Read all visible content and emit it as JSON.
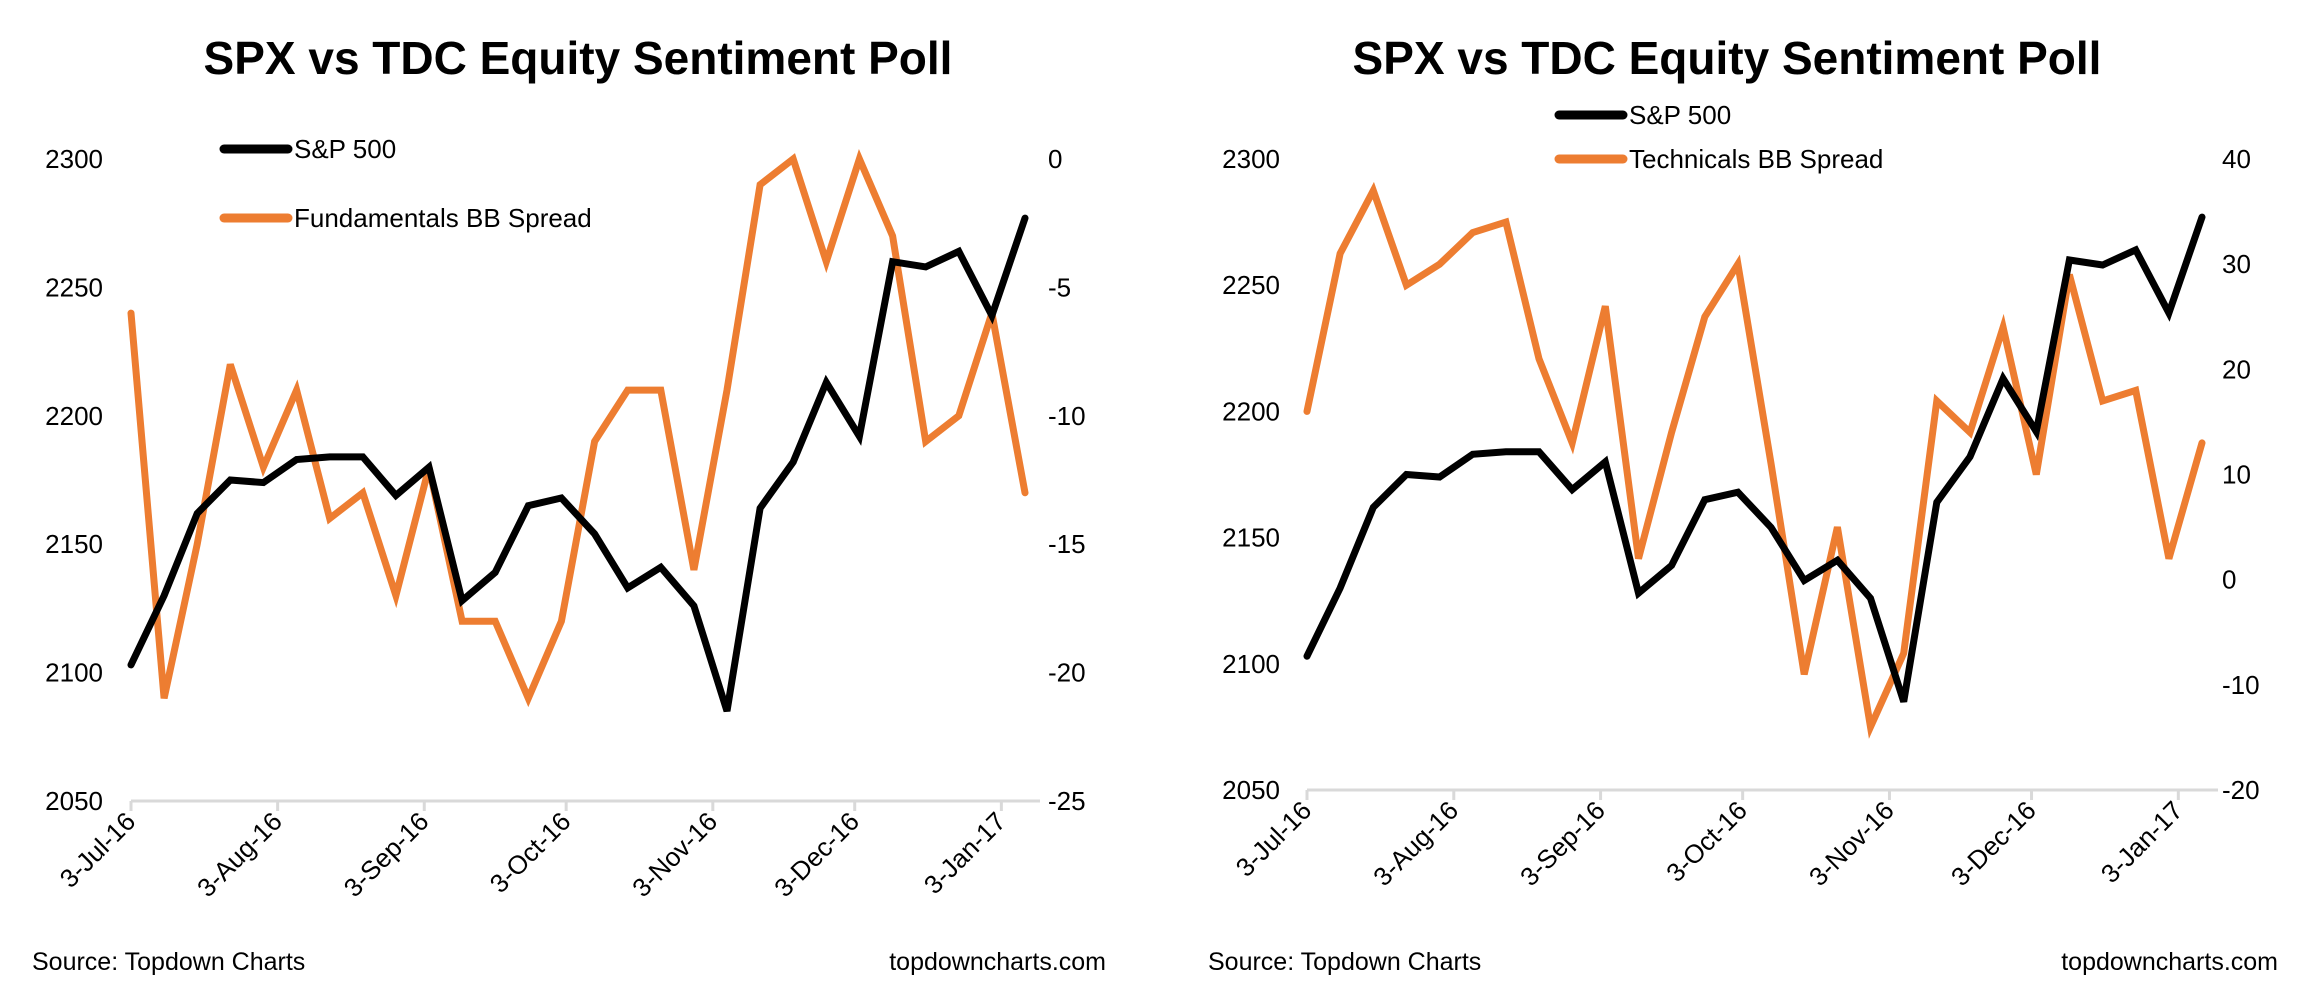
{
  "chart_data": [
    {
      "type": "line",
      "title": "SPX vs TDC Equity Sentiment Poll",
      "x": [
        "2016-07-03",
        "2016-07-10",
        "2016-07-17",
        "2016-07-24",
        "2016-07-31",
        "2016-08-07",
        "2016-08-14",
        "2016-08-21",
        "2016-08-28",
        "2016-09-04",
        "2016-09-11",
        "2016-09-18",
        "2016-09-25",
        "2016-10-02",
        "2016-10-09",
        "2016-10-16",
        "2016-10-23",
        "2016-10-30",
        "2016-11-06",
        "2016-11-13",
        "2016-11-20",
        "2016-11-27",
        "2016-12-04",
        "2016-12-11",
        "2016-12-18",
        "2016-12-25",
        "2017-01-01",
        "2017-01-08"
      ],
      "x_tick_labels": [
        "3-Jul-16",
        "3-Aug-16",
        "3-Sep-16",
        "3-Oct-16",
        "3-Nov-16",
        "3-Dec-16",
        "3-Jan-17"
      ],
      "x_tick_dates": [
        "2016-07-03",
        "2016-08-03",
        "2016-09-03",
        "2016-10-03",
        "2016-11-03",
        "2016-12-03",
        "2017-01-03"
      ],
      "y_left": {
        "range": [
          2050,
          2300
        ],
        "ticks": [
          "2050",
          "2100",
          "2150",
          "2200",
          "2250",
          "2300"
        ]
      },
      "y_right": {
        "range": [
          -25,
          0
        ],
        "ticks": [
          "-25",
          "-20",
          "-15",
          "-10",
          "-5",
          "0"
        ]
      },
      "grid": false,
      "legend_placement": "top-left",
      "series": [
        {
          "name": "S&P 500",
          "axis": "left",
          "color": "#000000",
          "values": [
            2103,
            2130,
            2162,
            2175,
            2174,
            2183,
            2184,
            2184,
            2169,
            2180,
            2128,
            2139,
            2165,
            2168,
            2154,
            2133,
            2141,
            2126,
            2085,
            2164,
            2182,
            2213,
            2192,
            2260,
            2258,
            2264,
            2239,
            2277
          ]
        },
        {
          "name": "Fundamentals BB Spread",
          "axis": "right",
          "color": "#ED7D31",
          "values": [
            -6,
            -21,
            -15,
            -8,
            -12,
            -9,
            -14,
            -13,
            -17,
            -12,
            -18,
            -18,
            -21,
            -18,
            -11,
            -9,
            -9,
            -16,
            -9,
            -1,
            0,
            -4,
            0,
            -3,
            -11,
            -10,
            -6,
            -13
          ]
        }
      ],
      "source": "Source: Topdown Charts",
      "watermark": "topdowncharts.com"
    },
    {
      "type": "line",
      "title": "SPX vs TDC Equity Sentiment Poll",
      "x": [
        "2016-07-03",
        "2016-07-10",
        "2016-07-17",
        "2016-07-24",
        "2016-07-31",
        "2016-08-07",
        "2016-08-14",
        "2016-08-21",
        "2016-08-28",
        "2016-09-04",
        "2016-09-11",
        "2016-09-18",
        "2016-09-25",
        "2016-10-02",
        "2016-10-09",
        "2016-10-16",
        "2016-10-23",
        "2016-10-30",
        "2016-11-06",
        "2016-11-13",
        "2016-11-20",
        "2016-11-27",
        "2016-12-04",
        "2016-12-11",
        "2016-12-18",
        "2016-12-25",
        "2017-01-01",
        "2017-01-08"
      ],
      "x_tick_labels": [
        "3-Jul-16",
        "3-Aug-16",
        "3-Sep-16",
        "3-Oct-16",
        "3-Nov-16",
        "3-Dec-16",
        "3-Jan-17"
      ],
      "x_tick_dates": [
        "2016-07-03",
        "2016-08-03",
        "2016-09-03",
        "2016-10-03",
        "2016-11-03",
        "2016-12-03",
        "2017-01-03"
      ],
      "y_left": {
        "range": [
          2050,
          2300
        ],
        "ticks": [
          "2050",
          "2100",
          "2150",
          "2200",
          "2250",
          "2300"
        ]
      },
      "y_right": {
        "range": [
          -20,
          40
        ],
        "ticks": [
          "-20",
          "-10",
          "0",
          "10",
          "20",
          "30",
          "40"
        ]
      },
      "grid": false,
      "legend_placement": "top-center",
      "series": [
        {
          "name": "S&P 500",
          "axis": "left",
          "color": "#000000",
          "values": [
            2103,
            2130,
            2162,
            2175,
            2174,
            2183,
            2184,
            2184,
            2169,
            2180,
            2128,
            2139,
            2165,
            2168,
            2154,
            2133,
            2141,
            2126,
            2085,
            2164,
            2182,
            2213,
            2192,
            2260,
            2258,
            2264,
            2239,
            2277
          ]
        },
        {
          "name": "Technicals BB Spread",
          "axis": "right",
          "color": "#ED7D31",
          "values": [
            16,
            31,
            37,
            28,
            30,
            33,
            34,
            21,
            13,
            26,
            2,
            14,
            25,
            30,
            11,
            -9,
            5,
            -14,
            -7,
            17,
            14,
            24,
            10,
            29,
            17,
            18,
            2,
            13
          ]
        }
      ],
      "source": "Source: Topdown Charts",
      "watermark": "topdowncharts.com"
    }
  ]
}
